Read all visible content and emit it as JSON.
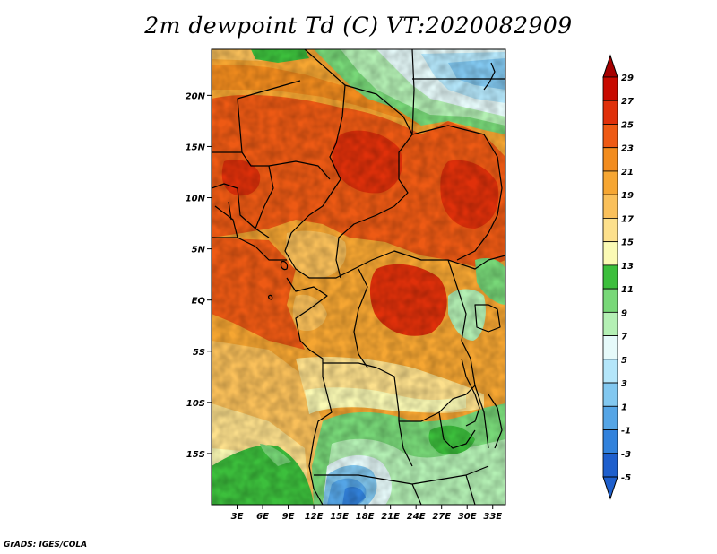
{
  "title": "2m dewpoint Td (C) VT:2020082909",
  "credit": "GrADS: IGES/COLA",
  "map": {
    "lon_min": 0.0,
    "lon_max": 34.5,
    "lat_min": -20.0,
    "lat_max": 24.5,
    "x_ticks": [
      {
        "label": "3E",
        "lon": 3
      },
      {
        "label": "6E",
        "lon": 6
      },
      {
        "label": "9E",
        "lon": 9
      },
      {
        "label": "12E",
        "lon": 12
      },
      {
        "label": "15E",
        "lon": 15
      },
      {
        "label": "18E",
        "lon": 18
      },
      {
        "label": "21E",
        "lon": 21
      },
      {
        "label": "24E",
        "lon": 24
      },
      {
        "label": "27E",
        "lon": 27
      },
      {
        "label": "30E",
        "lon": 30
      },
      {
        "label": "33E",
        "lon": 33
      }
    ],
    "y_ticks": [
      {
        "label": "20N",
        "lat": 20
      },
      {
        "label": "15N",
        "lat": 15
      },
      {
        "label": "10N",
        "lat": 10
      },
      {
        "label": "5N",
        "lat": 5
      },
      {
        "label": "EQ",
        "lat": 0
      },
      {
        "label": "5S",
        "lat": -5
      },
      {
        "label": "10S",
        "lat": -10
      },
      {
        "label": "15S",
        "lat": -15
      }
    ]
  },
  "colorbar": {
    "levels": [
      {
        "label": "29",
        "color": "#a50000"
      },
      {
        "label": "27",
        "color": "#c80a00"
      },
      {
        "label": "25",
        "color": "#e0300a"
      },
      {
        "label": "23",
        "color": "#ee5a14"
      },
      {
        "label": "21",
        "color": "#f28c1e"
      },
      {
        "label": "19",
        "color": "#f6a632"
      },
      {
        "label": "17",
        "color": "#fac05a"
      },
      {
        "label": "15",
        "color": "#fde08c"
      },
      {
        "label": "13",
        "color": "#fbfab4"
      },
      {
        "label": "11",
        "color": "#3cbf3c"
      },
      {
        "label": "9",
        "color": "#78d878"
      },
      {
        "label": "7",
        "color": "#b4f0b4"
      },
      {
        "label": "5",
        "color": "#e6fafa"
      },
      {
        "label": "3",
        "color": "#b4e6fa"
      },
      {
        "label": "1",
        "color": "#82c8f0"
      },
      {
        "label": "-1",
        "color": "#55a5e6"
      },
      {
        "label": "-3",
        "color": "#3282dc"
      },
      {
        "label": "-5",
        "color": "#1e5fcd"
      }
    ],
    "top_color": "#a50000",
    "bottom_color": "#1e5fcd"
  }
}
